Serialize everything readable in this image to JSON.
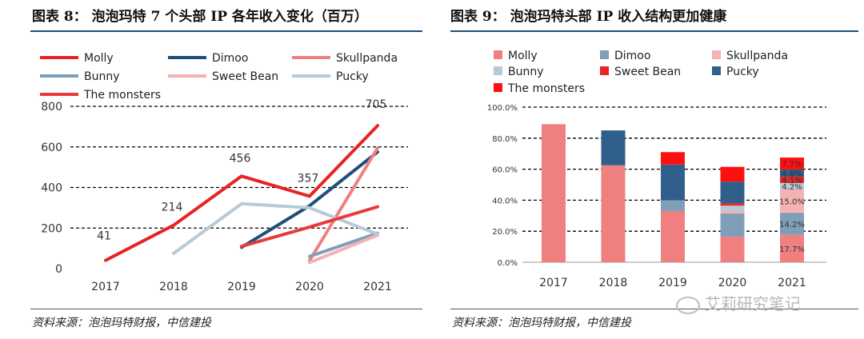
{
  "left": {
    "title": "图表 8：  泡泡玛特 7 个头部 IP 各年收入变化（百万）",
    "source": "资料来源：泡泡玛特财报，中信建投"
  },
  "right": {
    "title": "图表 9：  泡泡玛特头部 IP 收入结构更加健康",
    "source": "资料来源：泡泡玛特财报，中信建投",
    "watermark": "艾莉研究笔记"
  },
  "chart_data": [
    {
      "type": "line",
      "title": "泡泡玛特 7 个头部 IP 各年收入变化（百万）",
      "categories": [
        "2017",
        "2018",
        "2019",
        "2020",
        "2021"
      ],
      "ylim": [
        0,
        800
      ],
      "yticks": [
        0,
        200,
        400,
        600,
        800
      ],
      "legend_position": "top",
      "series": [
        {
          "name": "Molly",
          "color": "#e82323",
          "values": [
            41,
            214,
            456,
            357,
            705
          ],
          "labels": [
            "41",
            "214",
            "456",
            "357",
            "705"
          ]
        },
        {
          "name": "Dimoo",
          "color": "#1f4e79",
          "values": [
            null,
            null,
            105,
            310,
            575
          ]
        },
        {
          "name": "Skullpanda",
          "color": "#f08080",
          "values": [
            null,
            null,
            null,
            40,
            595
          ]
        },
        {
          "name": "Bunny",
          "color": "#7f9fb8",
          "values": [
            null,
            null,
            null,
            60,
            175
          ]
        },
        {
          "name": "Sweet Bean",
          "color": "#f4b2b2",
          "values": [
            null,
            null,
            null,
            30,
            165
          ]
        },
        {
          "name": "Pucky",
          "color": "#b7cad8",
          "values": [
            null,
            75,
            320,
            300,
            170
          ]
        },
        {
          "name": "The monsters",
          "color": "#e83a3a",
          "values": [
            null,
            null,
            110,
            205,
            305
          ]
        }
      ]
    },
    {
      "type": "bar",
      "stacked": true,
      "title": "泡泡玛特头部 IP 收入结构更加健康",
      "categories": [
        "2017",
        "2018",
        "2019",
        "2020",
        "2021"
      ],
      "ylim": [
        0,
        100
      ],
      "yticks": [
        "0.0%",
        "20.0%",
        "40.0%",
        "60.0%",
        "80.0%",
        "100.0%"
      ],
      "legend_position": "top",
      "series": [
        {
          "name": "Molly",
          "color": "#f08080",
          "values": [
            89.0,
            62.5,
            33.0,
            16.5,
            17.7
          ],
          "labels": [
            "",
            "",
            "",
            "",
            "17.7%"
          ]
        },
        {
          "name": "Dimoo",
          "color": "#7f9fb8",
          "values": [
            0,
            0,
            7.0,
            15.0,
            14.2
          ],
          "labels": [
            "",
            "",
            "",
            "",
            "14.2%"
          ]
        },
        {
          "name": "Skullpanda",
          "color": "#f4b2b2",
          "values": [
            0,
            0,
            0,
            1.5,
            15.0
          ],
          "labels": [
            "",
            "",
            "",
            "",
            "15.0%"
          ]
        },
        {
          "name": "Bunny",
          "color": "#b7cad8",
          "values": [
            0,
            0,
            0,
            3.5,
            4.2
          ],
          "labels": [
            "",
            "",
            "",
            "",
            "4.2%"
          ]
        },
        {
          "name": "Sweet Bean",
          "color": "#e82323",
          "values": [
            0,
            0,
            0,
            1.5,
            4.1
          ],
          "labels": [
            "",
            "",
            "",
            "",
            "4.1%"
          ]
        },
        {
          "name": "Pucky",
          "color": "#2f5f8a",
          "values": [
            0,
            22.5,
            23.0,
            14.0,
            4.6
          ],
          "labels": [
            "",
            "",
            "",
            "",
            "4.6%"
          ]
        },
        {
          "name": "The monsters",
          "color": "#ff1010",
          "values": [
            0,
            0,
            8.0,
            9.5,
            7.7
          ],
          "labels": [
            "",
            "",
            "",
            "",
            "7.7%"
          ]
        }
      ]
    }
  ]
}
